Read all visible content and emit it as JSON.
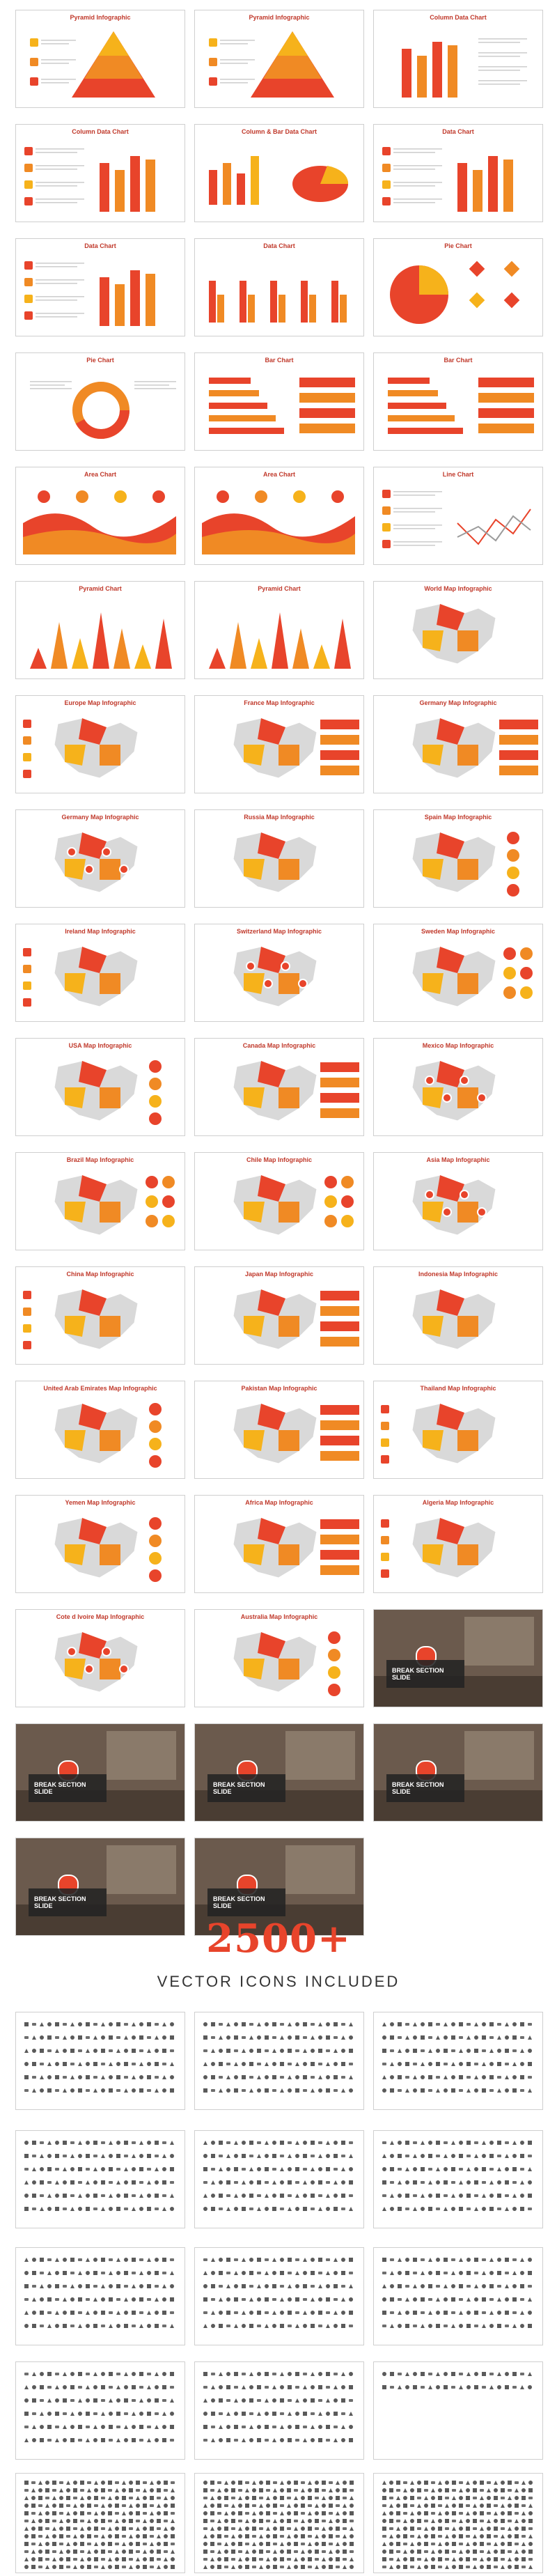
{
  "accent_colors": {
    "red": "#e8442b",
    "dark_red": "#c0392b",
    "orange": "#f08a24",
    "yellow": "#f6b21b",
    "grey": "#9b9b9b"
  },
  "slides": [
    {
      "title": "Pyramid Infographic",
      "kind": "pyramid"
    },
    {
      "title": "Pyramid Infographic",
      "kind": "pyramid"
    },
    {
      "title": "Column Data Chart",
      "kind": "column"
    },
    {
      "title": "Column Data Chart",
      "kind": "column-list"
    },
    {
      "title": "Column & Bar Data Chart",
      "kind": "column-pie"
    },
    {
      "title": "Data Chart",
      "kind": "column-diamond"
    },
    {
      "title": "Data Chart",
      "kind": "list-column"
    },
    {
      "title": "Data Chart",
      "kind": "grouped"
    },
    {
      "title": "Pie Chart",
      "kind": "pie-diamond"
    },
    {
      "title": "Pie Chart",
      "kind": "donut"
    },
    {
      "title": "Bar Chart",
      "kind": "bars"
    },
    {
      "title": "Bar Chart",
      "kind": "bars2"
    },
    {
      "title": "Area Chart",
      "kind": "area"
    },
    {
      "title": "Area Chart",
      "kind": "area2"
    },
    {
      "title": "Line Chart",
      "kind": "line"
    },
    {
      "title": "Pyramid Chart",
      "kind": "spikes"
    },
    {
      "title": "Pyramid Chart",
      "kind": "spikes2"
    },
    {
      "title": "World Map Infographic",
      "kind": "map"
    },
    {
      "title": "Europe Map Infographic",
      "kind": "map-left"
    },
    {
      "title": "France Map Infographic",
      "kind": "map-right"
    },
    {
      "title": "Germany Map Infographic",
      "kind": "map-num"
    },
    {
      "title": "Germany Map Infographic",
      "kind": "map-pins"
    },
    {
      "title": "Russia Map Infographic",
      "kind": "map"
    },
    {
      "title": "Spain Map Infographic",
      "kind": "map-pct"
    },
    {
      "title": "Ireland Map Infographic",
      "kind": "map-left"
    },
    {
      "title": "Switzerland Map Infographic",
      "kind": "map-pins"
    },
    {
      "title": "Sweden Map Infographic",
      "kind": "map-icons"
    },
    {
      "title": "USA Map Infographic",
      "kind": "map-pct"
    },
    {
      "title": "Canada Map Infographic",
      "kind": "map-right"
    },
    {
      "title": "Mexico Map Infographic",
      "kind": "map-pins"
    },
    {
      "title": "Brazil Map Infographic",
      "kind": "map-icons"
    },
    {
      "title": "Chile Map Infographic",
      "kind": "map-icons"
    },
    {
      "title": "Asia Map Infographic",
      "kind": "map-pins"
    },
    {
      "title": "China Map Infographic",
      "kind": "map-left"
    },
    {
      "title": "Japan Map Infographic",
      "kind": "map-right"
    },
    {
      "title": "Indonesia Map Infographic",
      "kind": "map"
    },
    {
      "title": "United Arab Emirates Map Infographic",
      "kind": "map-pct"
    },
    {
      "title": "Pakistan Map Infographic",
      "kind": "map-right"
    },
    {
      "title": "Thailand Map Infographic",
      "kind": "map-left"
    },
    {
      "title": "Yemen Map Infographic",
      "kind": "map-pct"
    },
    {
      "title": "Africa Map Infographic",
      "kind": "map-right"
    },
    {
      "title": "Algeria Map Infographic",
      "kind": "map-left"
    },
    {
      "title": "Cote d Ivoire Map Infographic",
      "kind": "map-pins"
    },
    {
      "title": "Australia Map Infographic",
      "kind": "map-pct"
    },
    {
      "title": "BREAK SECTION SLIDE",
      "kind": "photo"
    },
    {
      "title": "BREAK SECTION SLIDE",
      "kind": "photo"
    },
    {
      "title": "BREAK SECTION SLIDE",
      "kind": "photo"
    },
    {
      "title": "BREAK SECTION SLIDE",
      "kind": "photo"
    },
    {
      "title": "BREAK SECTION SLIDE",
      "kind": "photo"
    },
    {
      "title": "BREAK SECTION SLIDE",
      "kind": "photo"
    }
  ],
  "promo": {
    "headline": "2500+",
    "subheadline": "VECTOR ICONS INCLUDED"
  }
}
